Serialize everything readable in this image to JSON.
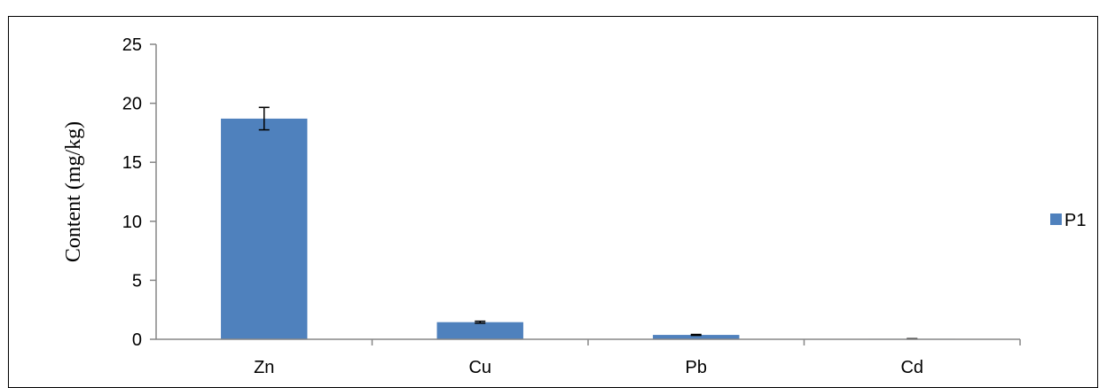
{
  "chart_data": {
    "type": "bar",
    "categories": [
      "Zn",
      "Cu",
      "Pb",
      "Cd"
    ],
    "series": [
      {
        "name": "P1",
        "values": [
          18.7,
          1.45,
          0.37,
          0.04
        ],
        "errors": [
          0.95,
          0.08,
          0.04,
          0.01
        ],
        "color": "#4F81BD"
      }
    ],
    "title": "",
    "xlabel": "",
    "ylabel": "Content  (mg/kg)",
    "ylim": [
      0,
      25
    ],
    "yticks": [
      "0",
      "5",
      "10",
      "15",
      "20",
      "25"
    ],
    "grid": false,
    "legend": "right"
  }
}
